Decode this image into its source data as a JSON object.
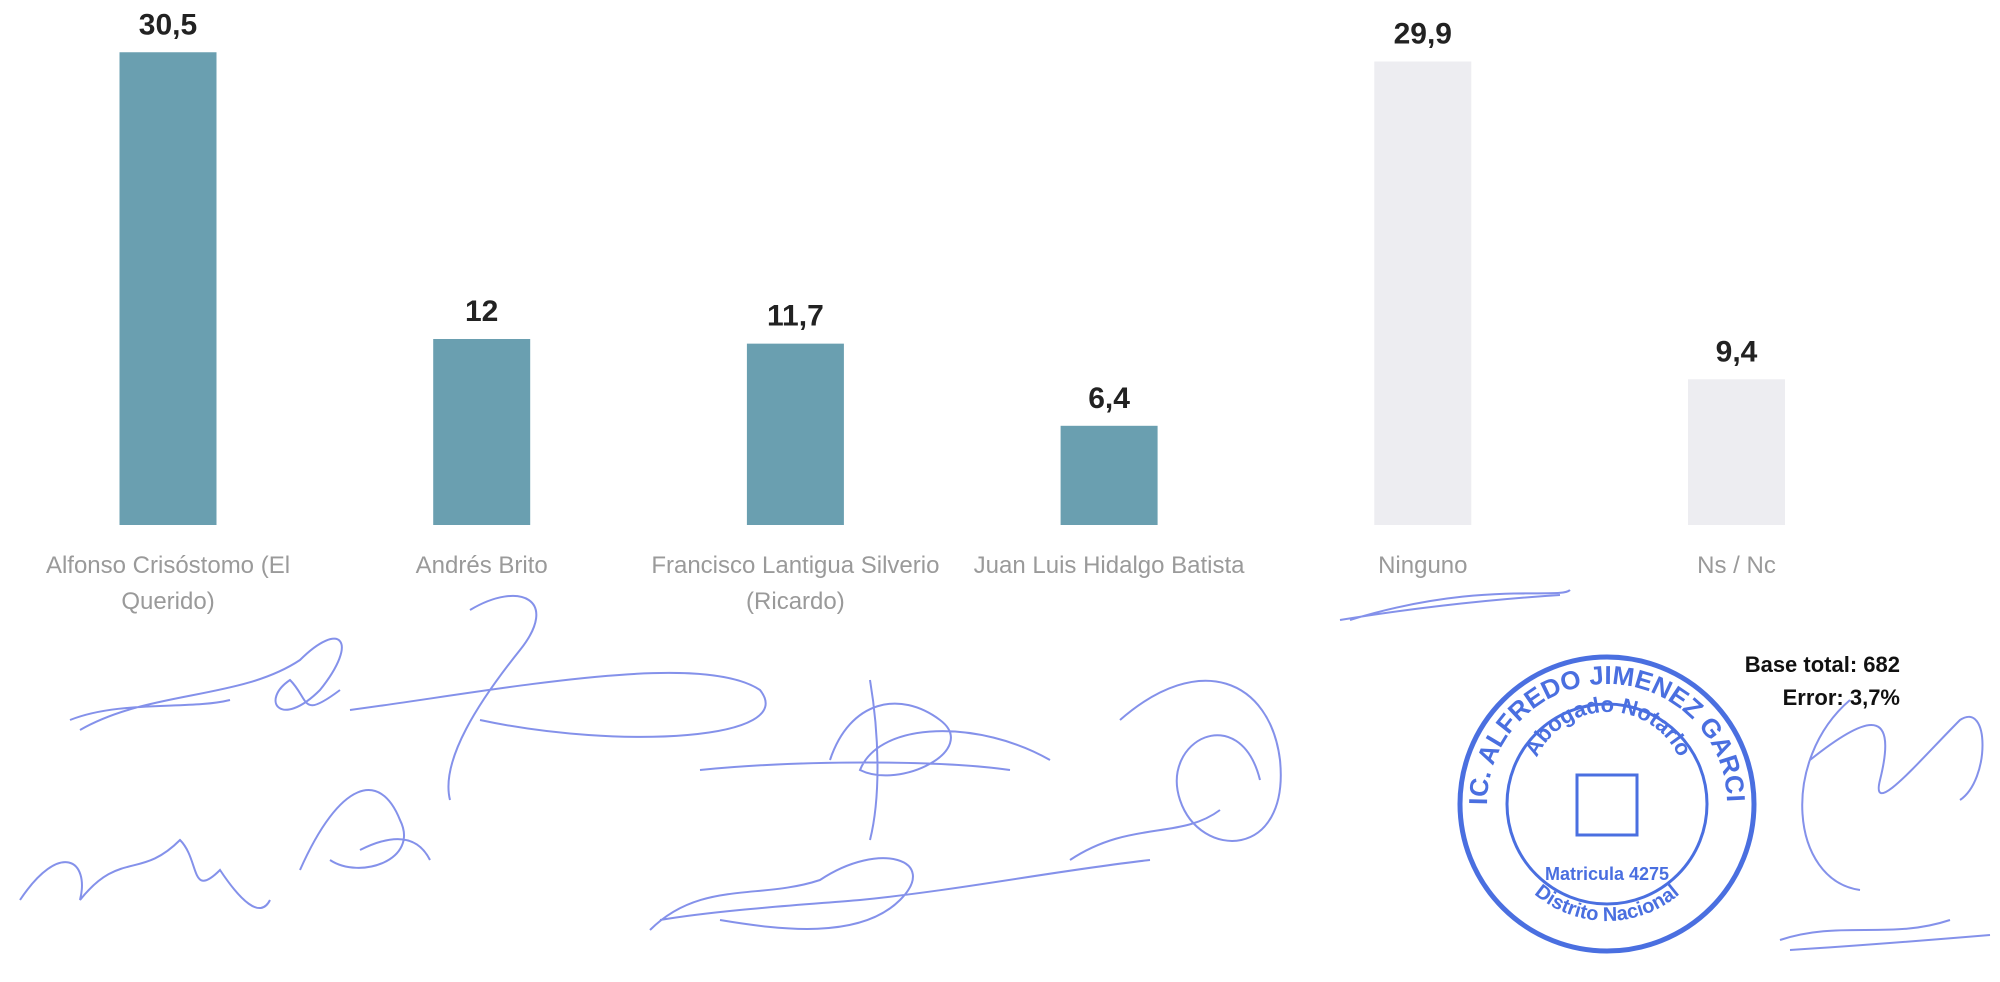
{
  "chart_data": {
    "type": "bar",
    "categories": [
      "Alfonso Crisóstomo (El Querido)",
      "Andrés Brito",
      "Francisco Lantigua Silverio (Ricardo)",
      "Juan Luis Hidalgo Batista",
      "Ninguno",
      "Ns / Nc"
    ],
    "values": [
      30.5,
      12,
      11.7,
      6.4,
      29.9,
      9.4
    ],
    "value_labels": [
      "30,5",
      "12",
      "11,7",
      "6,4",
      "29,9",
      "9,4"
    ],
    "colors": [
      "#6a9fb0",
      "#6a9fb0",
      "#6a9fb0",
      "#6a9fb0",
      "#ededf1",
      "#ededf1"
    ],
    "annotations": [
      "Base total: 682",
      "Error: 3,7%"
    ]
  },
  "stamp": [
    "LIC. ALFREDO JIMENEZ GARCIA",
    "Abogado Notario",
    "Matricula 4275",
    "Distrito Nacional"
  ]
}
